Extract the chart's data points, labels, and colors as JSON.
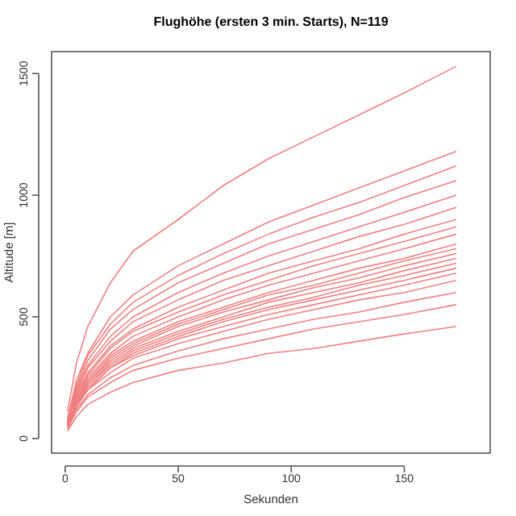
{
  "chart_data": {
    "type": "line",
    "title": "Flughöhe (ersten 3 min. Starts), N=119",
    "xlabel": "Sekunden",
    "ylabel": "Altitude [m]",
    "x": [
      1,
      5,
      10,
      20,
      30,
      50,
      70,
      90,
      110,
      130,
      150,
      173
    ],
    "xlim": [
      -6,
      188
    ],
    "ylim": [
      -60,
      1590
    ],
    "xticks": [
      0,
      50,
      100,
      150
    ],
    "yticks": [
      0,
      500,
      1000,
      1500
    ],
    "grid": false,
    "marker": "none",
    "line_style": "solid",
    "series": [
      {
        "color": "#f08080",
        "values": [
          110,
          310,
          460,
          640,
          770,
          900,
          1040,
          1150,
          1240,
          1330,
          1420,
          1530
        ]
      },
      {
        "color": "#f08080",
        "values": [
          80,
          240,
          350,
          500,
          590,
          710,
          800,
          890,
          960,
          1030,
          1100,
          1180
        ]
      },
      {
        "color": "#f08080",
        "values": [
          80,
          220,
          340,
          470,
          560,
          670,
          760,
          840,
          910,
          970,
          1040,
          1120
        ]
      },
      {
        "color": "#f08080",
        "values": [
          70,
          210,
          320,
          450,
          530,
          640,
          720,
          800,
          860,
          920,
          990,
          1060
        ]
      },
      {
        "color": "#f08080",
        "values": [
          70,
          200,
          300,
          420,
          500,
          600,
          680,
          750,
          810,
          870,
          930,
          1000
        ]
      },
      {
        "color": "#f08080",
        "values": [
          70,
          190,
          290,
          400,
          480,
          570,
          650,
          710,
          770,
          830,
          880,
          950
        ]
      },
      {
        "color": "#f08080",
        "values": [
          60,
          180,
          270,
          380,
          450,
          540,
          610,
          680,
          730,
          780,
          840,
          900
        ]
      },
      {
        "color": "#f08080",
        "values": [
          60,
          170,
          260,
          370,
          440,
          520,
          590,
          650,
          710,
          760,
          810,
          870
        ]
      },
      {
        "color": "#f08080",
        "values": [
          60,
          170,
          250,
          350,
          420,
          500,
          570,
          630,
          680,
          730,
          780,
          840
        ]
      },
      {
        "color": "#f08080",
        "values": [
          60,
          160,
          240,
          340,
          400,
          480,
          540,
          600,
          650,
          700,
          740,
          800
        ]
      },
      {
        "color": "#f08080",
        "values": [
          50,
          160,
          230,
          330,
          390,
          470,
          530,
          590,
          630,
          680,
          730,
          780
        ]
      },
      {
        "color": "#f08080",
        "values": [
          50,
          150,
          230,
          320,
          380,
          460,
          520,
          570,
          620,
          660,
          710,
          760
        ]
      },
      {
        "color": "#f08080",
        "values": [
          50,
          150,
          220,
          310,
          370,
          440,
          500,
          560,
          600,
          640,
          690,
          740
        ]
      },
      {
        "color": "#f08080",
        "values": [
          50,
          140,
          220,
          300,
          360,
          430,
          490,
          540,
          580,
          630,
          670,
          720
        ]
      },
      {
        "color": "#f08080",
        "values": [
          50,
          140,
          210,
          290,
          350,
          420,
          480,
          530,
          570,
          610,
          650,
          700
        ]
      },
      {
        "color": "#f08080",
        "values": [
          50,
          140,
          200,
          290,
          340,
          410,
          460,
          510,
          550,
          590,
          630,
          680
        ]
      },
      {
        "color": "#f08080",
        "values": [
          50,
          130,
          200,
          270,
          330,
          390,
          440,
          490,
          530,
          570,
          600,
          650
        ]
      },
      {
        "color": "#f08080",
        "values": [
          40,
          120,
          180,
          250,
          300,
          360,
          410,
          450,
          490,
          520,
          560,
          600
        ]
      },
      {
        "color": "#f08080",
        "values": [
          40,
          110,
          170,
          230,
          280,
          330,
          370,
          410,
          450,
          480,
          510,
          550
        ]
      },
      {
        "color": "#f08080",
        "values": [
          30,
          90,
          140,
          190,
          230,
          280,
          310,
          350,
          370,
          400,
          430,
          460
        ]
      }
    ]
  }
}
